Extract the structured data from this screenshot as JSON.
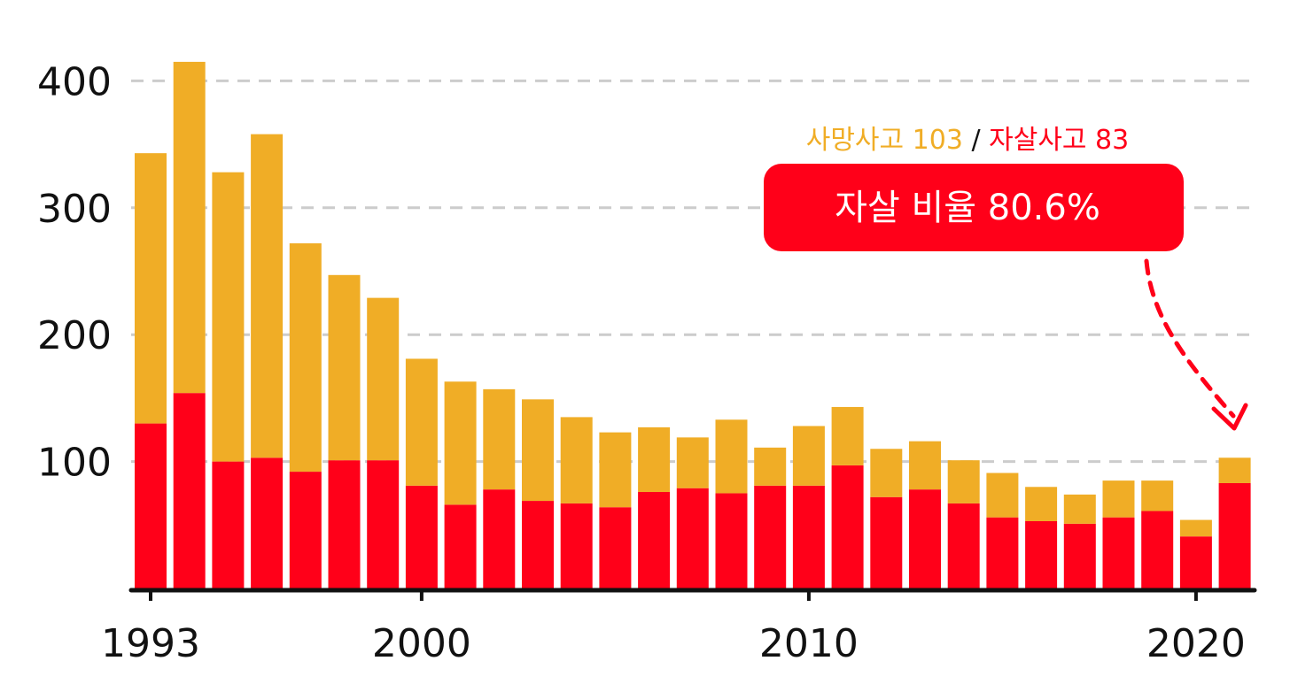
{
  "chart_data": {
    "type": "bar",
    "stacked": true,
    "x": [
      1993,
      1994,
      1995,
      1996,
      1997,
      1998,
      1999,
      2000,
      2001,
      2002,
      2003,
      2004,
      2005,
      2006,
      2007,
      2008,
      2009,
      2010,
      2011,
      2012,
      2013,
      2014,
      2015,
      2016,
      2017,
      2018,
      2019,
      2020,
      2021
    ],
    "series": [
      {
        "key": "suicide",
        "color": "#ff0019",
        "values": [
          130,
          154,
          100,
          103,
          92,
          101,
          101,
          81,
          66,
          78,
          69,
          67,
          64,
          76,
          79,
          75,
          81,
          81,
          97,
          72,
          78,
          67,
          56,
          53,
          51,
          56,
          61,
          41,
          83
        ]
      },
      {
        "key": "other",
        "color": "#f0ad26",
        "values": [
          213,
          261,
          228,
          255,
          180,
          146,
          128,
          100,
          97,
          79,
          80,
          68,
          59,
          51,
          40,
          58,
          30,
          47,
          46,
          38,
          38,
          34,
          35,
          27,
          23,
          29,
          24,
          13,
          20
        ]
      }
    ],
    "xticks": [
      "1993",
      "2000",
      "2010",
      "2020"
    ],
    "yticks": [
      "100",
      "200",
      "300",
      "400"
    ],
    "ylim": [
      0,
      425
    ],
    "grid": "horizontal-dashed",
    "colors": {
      "accent": "#ff0019",
      "secondary": "#f0ad26",
      "grid": "#cccccc",
      "axis": "#111111"
    },
    "annotation": {
      "deaths_label": "사망사고 103",
      "separator": " / ",
      "suicide_label": "자살사고 83",
      "box_text": "자살 비율 80.6%"
    }
  }
}
